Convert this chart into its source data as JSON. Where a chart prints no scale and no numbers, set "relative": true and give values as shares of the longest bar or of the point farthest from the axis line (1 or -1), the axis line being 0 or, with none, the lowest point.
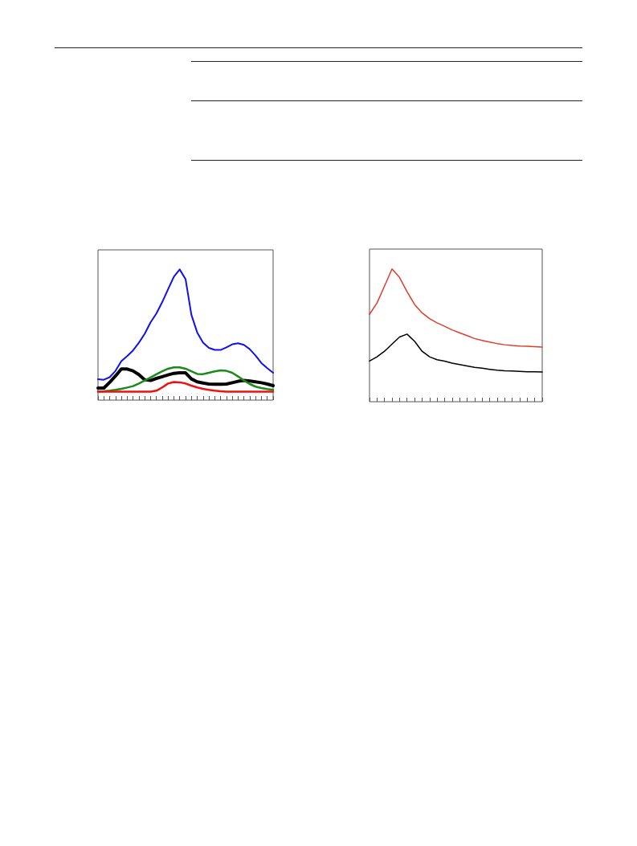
{
  "chart_data": [
    {
      "type": "line",
      "relative": true,
      "categories": [
        null,
        null,
        null,
        null,
        null,
        null,
        null,
        null,
        null,
        null,
        null,
        null,
        null,
        null,
        null,
        null,
        null,
        null,
        null,
        null,
        null,
        null,
        null,
        null,
        null,
        null,
        null,
        null,
        null,
        null,
        null
      ],
      "series": [
        {
          "color": "#1010f0",
          "values": [
            0.16,
            0.156,
            0.175,
            0.224,
            0.298,
            0.337,
            0.38,
            0.439,
            0.507,
            0.595,
            0.663,
            0.75,
            0.848,
            0.945,
            1,
            0.926,
            0.653,
            0.517,
            0.439,
            0.4,
            0.384,
            0.384,
            0.404,
            0.427,
            0.435,
            0.423,
            0.39,
            0.341,
            0.283,
            0.244,
            0.209
          ]
        },
        {
          "color": "#000000",
          "values": [
            0.092,
            0.092,
            0.136,
            0.185,
            0.238,
            0.238,
            0.224,
            0.195,
            0.156,
            0.15,
            0.166,
            0.179,
            0.193,
            0.205,
            0.209,
            0.209,
            0.162,
            0.14,
            0.131,
            0.123,
            0.121,
            0.121,
            0.123,
            0.133,
            0.144,
            0.15,
            0.146,
            0.14,
            0.133,
            0.123,
            0.111
          ]
        },
        {
          "color": "#1a8a1a",
          "values": [
            0.066,
            0.068,
            0.072,
            0.078,
            0.086,
            0.096,
            0.107,
            0.127,
            0.15,
            0.173,
            0.197,
            0.22,
            0.24,
            0.251,
            0.251,
            0.24,
            0.22,
            0.2,
            0.199,
            0.209,
            0.22,
            0.228,
            0.224,
            0.209,
            0.181,
            0.15,
            0.123,
            0.103,
            0.092,
            0.084,
            0.078
          ]
        },
        {
          "color": "#f01010",
          "values": [
            0.064,
            0.064,
            0.064,
            0.064,
            0.064,
            0.064,
            0.064,
            0.064,
            0.064,
            0.064,
            0.072,
            0.097,
            0.127,
            0.138,
            0.136,
            0.127,
            0.111,
            0.097,
            0.086,
            0.078,
            0.072,
            0.068,
            0.064,
            0.064,
            0.064,
            0.064,
            0.064,
            0.064,
            0.064,
            0.064,
            0.064
          ]
        }
      ]
    },
    {
      "type": "line",
      "relative": true,
      "categories": [
        null,
        null,
        null,
        null,
        null,
        null,
        null,
        null,
        null,
        null,
        null,
        null,
        null,
        null,
        null,
        null,
        null,
        null,
        null,
        null,
        null,
        null,
        null,
        null
      ],
      "series": [
        {
          "color": "#e03c2c",
          "values": [
            0.658,
            0.744,
            0.872,
            1,
            0.936,
            0.829,
            0.733,
            0.669,
            0.626,
            0.594,
            0.568,
            0.541,
            0.519,
            0.498,
            0.476,
            0.462,
            0.449,
            0.438,
            0.429,
            0.423,
            0.419,
            0.417,
            0.415,
            0.412
          ]
        },
        {
          "color": "#000000",
          "values": [
            0.306,
            0.338,
            0.38,
            0.434,
            0.487,
            0.509,
            0.455,
            0.38,
            0.338,
            0.316,
            0.306,
            0.291,
            0.28,
            0.269,
            0.259,
            0.252,
            0.244,
            0.237,
            0.233,
            0.231,
            0.229,
            0.226,
            0.226,
            0.224
          ]
        }
      ]
    }
  ]
}
